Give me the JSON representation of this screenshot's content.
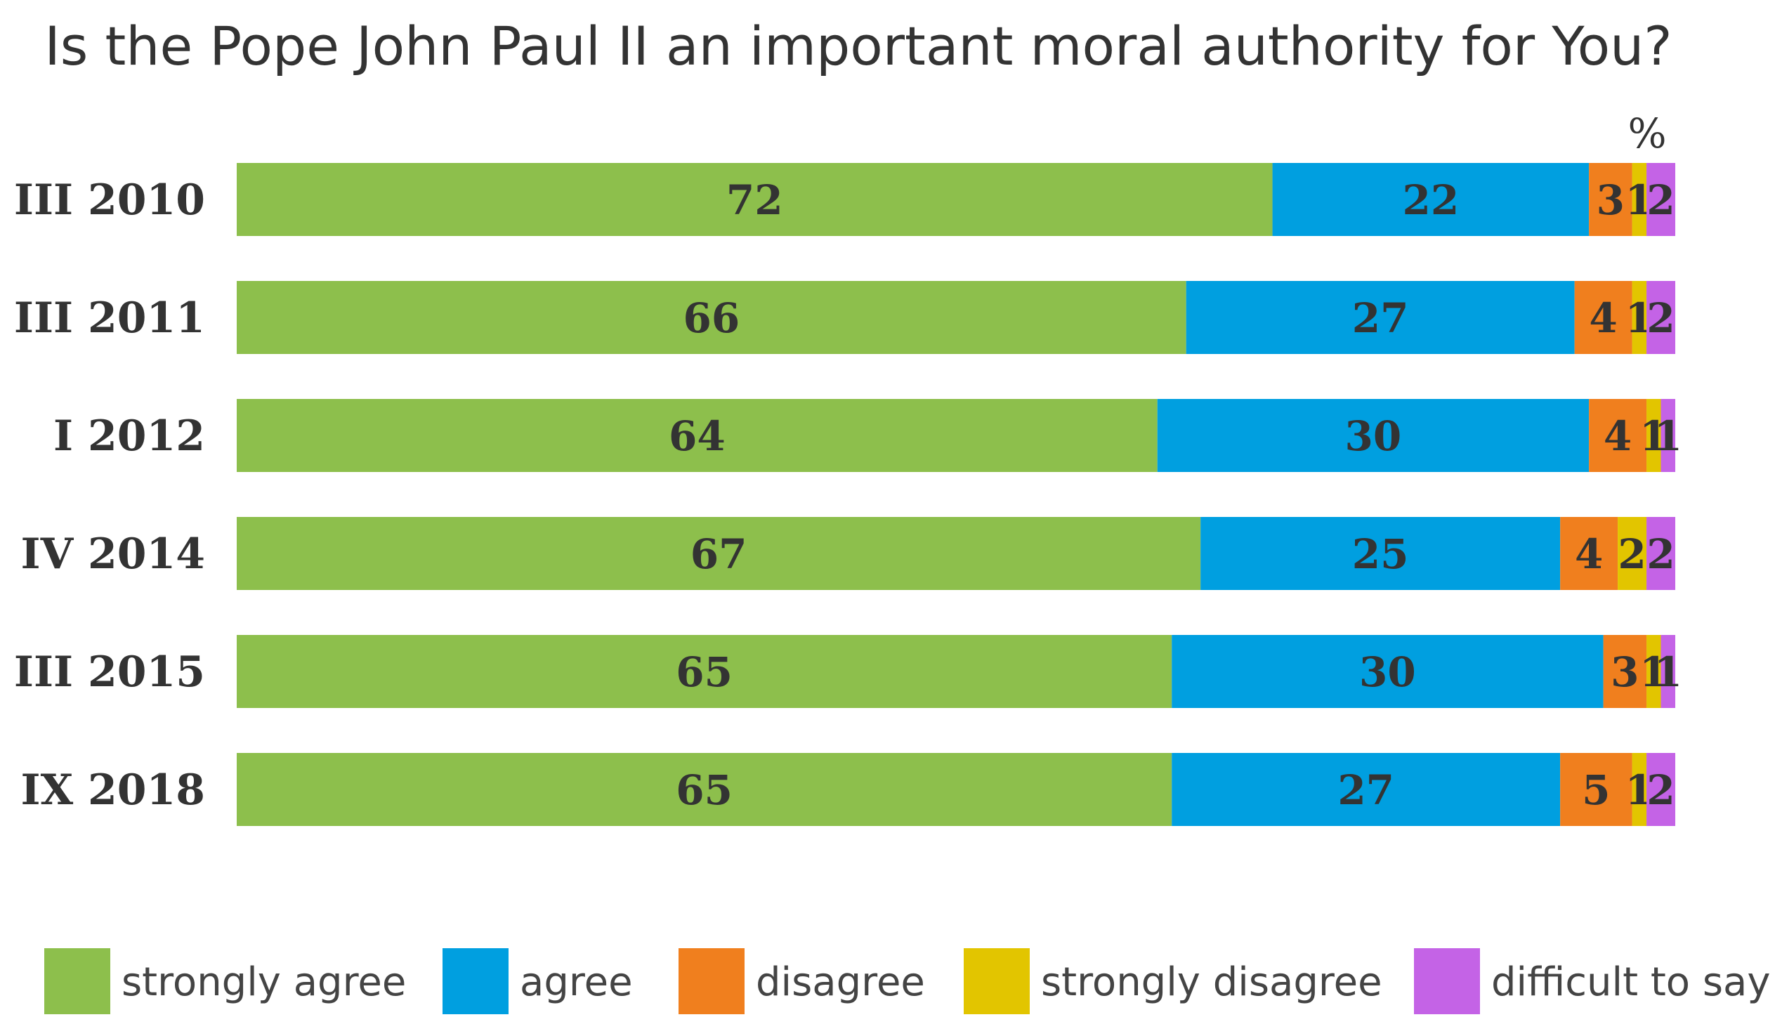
{
  "chart_data": {
    "type": "bar",
    "orientation": "horizontal",
    "stacked": true,
    "title": "Is the Pope John Paul II an important moral authority for You?",
    "unit": "%",
    "categories": [
      "III 2010",
      "III 2011",
      "I 2012",
      "IV 2014",
      "III 2015",
      "IX 2018"
    ],
    "series": [
      {
        "name": "strongly agree",
        "color": "#8dbf4c",
        "values": [
          72,
          66,
          64,
          67,
          65,
          65
        ]
      },
      {
        "name": "agree",
        "color": "#009fe0",
        "values": [
          22,
          27,
          30,
          25,
          30,
          27
        ]
      },
      {
        "name": "disagree",
        "color": "#f07f1e",
        "values": [
          3,
          4,
          4,
          4,
          3,
          5
        ]
      },
      {
        "name": "strongly disagree",
        "color": "#e2c500",
        "values": [
          1,
          1,
          1,
          2,
          1,
          1
        ]
      },
      {
        "name": "difficult to say",
        "color": "#c463e6",
        "values": [
          2,
          2,
          1,
          2,
          1,
          2
        ]
      }
    ],
    "xlim": [
      0,
      100
    ],
    "grid": false,
    "legend": "bottom"
  }
}
